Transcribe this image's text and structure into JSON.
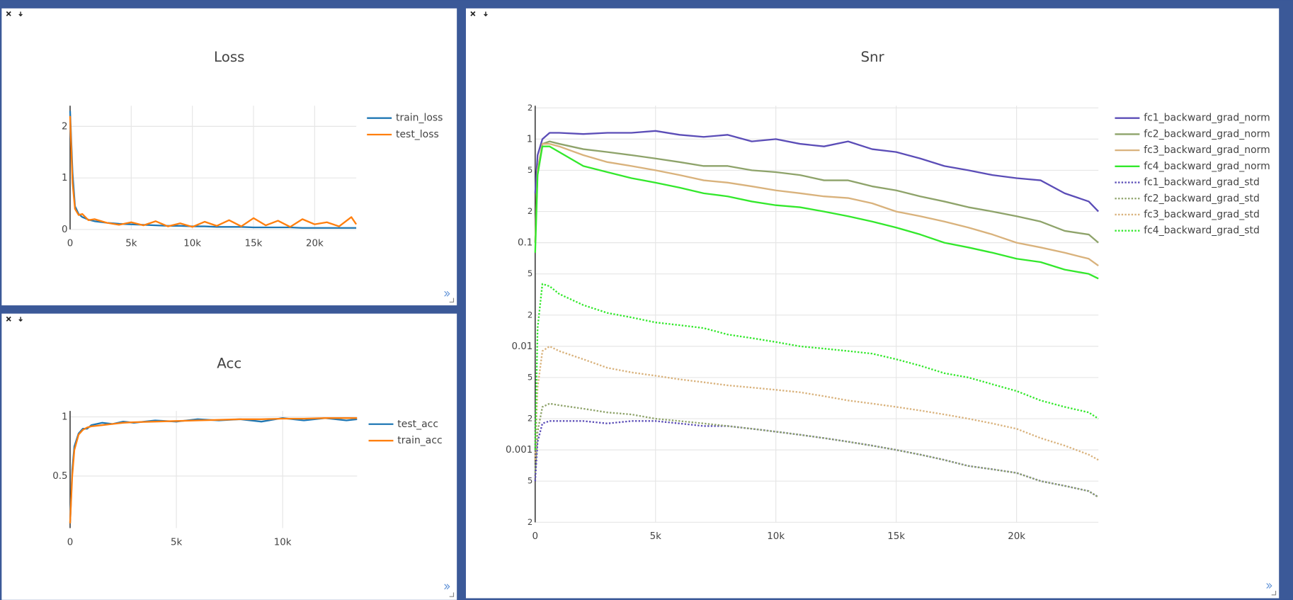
{
  "chart_data": [
    {
      "type": "line",
      "title": "Loss",
      "grid": true,
      "legend": "right",
      "x": [
        0,
        200,
        400,
        700,
        1000,
        1500,
        2000,
        3000,
        4000,
        5000,
        6000,
        7000,
        8000,
        9000,
        10000,
        11000,
        12000,
        13000,
        14000,
        15000,
        16000,
        17000,
        18000,
        19000,
        20000,
        21000,
        22000,
        23000,
        23400
      ],
      "series": [
        {
          "name": "train_loss",
          "color": "#1f77b4",
          "values": [
            2.3,
            1.1,
            0.45,
            0.3,
            0.24,
            0.19,
            0.16,
            0.13,
            0.11,
            0.1,
            0.09,
            0.08,
            0.07,
            0.07,
            0.06,
            0.06,
            0.05,
            0.05,
            0.05,
            0.04,
            0.04,
            0.04,
            0.04,
            0.03,
            0.03,
            0.03,
            0.03,
            0.03,
            0.03
          ]
        },
        {
          "name": "test_loss",
          "color": "#ff7f0e",
          "values": [
            2.2,
            0.9,
            0.4,
            0.28,
            0.3,
            0.18,
            0.2,
            0.13,
            0.09,
            0.14,
            0.08,
            0.16,
            0.06,
            0.12,
            0.05,
            0.15,
            0.07,
            0.18,
            0.06,
            0.22,
            0.08,
            0.17,
            0.05,
            0.2,
            0.1,
            0.14,
            0.06,
            0.24,
            0.1
          ]
        }
      ],
      "xlim": [
        0,
        23400
      ],
      "xticks": [
        0,
        {
          "value": 5000,
          "label": "5k"
        },
        {
          "value": 10000,
          "label": "10k"
        },
        {
          "value": 15000,
          "label": "15k"
        },
        {
          "value": 20000,
          "label": "20k"
        }
      ],
      "ylim": [
        0,
        2.4
      ],
      "yticks": [
        0,
        1,
        2
      ]
    },
    {
      "type": "line",
      "title": "Acc",
      "grid": true,
      "legend": "right",
      "x": [
        0,
        100,
        200,
        400,
        600,
        800,
        1000,
        1500,
        2000,
        2500,
        3000,
        4000,
        5000,
        6000,
        7000,
        8000,
        9000,
        10000,
        11000,
        12000,
        13000,
        13500
      ],
      "series": [
        {
          "name": "test_acc",
          "color": "#1f77b4",
          "values": [
            0.1,
            0.55,
            0.75,
            0.86,
            0.9,
            0.9,
            0.93,
            0.95,
            0.94,
            0.96,
            0.95,
            0.97,
            0.96,
            0.98,
            0.97,
            0.98,
            0.96,
            0.99,
            0.97,
            0.99,
            0.97,
            0.98
          ]
        },
        {
          "name": "train_acc",
          "color": "#ff7f0e",
          "values": [
            0.1,
            0.5,
            0.72,
            0.85,
            0.89,
            0.91,
            0.92,
            0.93,
            0.94,
            0.95,
            0.955,
            0.96,
            0.965,
            0.97,
            0.975,
            0.98,
            0.98,
            0.985,
            0.985,
            0.99,
            0.99,
            0.99
          ]
        }
      ],
      "xlim": [
        0,
        13500
      ],
      "xticks": [
        0,
        {
          "value": 5000,
          "label": "5k"
        },
        {
          "value": 10000,
          "label": "10k"
        }
      ],
      "ylim": [
        0.06,
        1.05
      ],
      "yticks": [
        0.5,
        1
      ]
    },
    {
      "type": "line",
      "title": "Snr",
      "grid": true,
      "legend": "right",
      "log_y": true,
      "x": [
        0,
        100,
        300,
        600,
        1000,
        2000,
        3000,
        4000,
        5000,
        6000,
        7000,
        8000,
        9000,
        10000,
        11000,
        12000,
        13000,
        14000,
        15000,
        16000,
        17000,
        18000,
        19000,
        20000,
        21000,
        22000,
        23000,
        23400
      ],
      "series": [
        {
          "name": "fc1_backward_grad_norm",
          "color": "#5b4db7",
          "dash": "solid",
          "values": [
            0.3,
            0.7,
            1.0,
            1.15,
            1.15,
            1.12,
            1.15,
            1.15,
            1.2,
            1.1,
            1.05,
            1.1,
            0.95,
            1.0,
            0.9,
            0.85,
            0.95,
            0.8,
            0.75,
            0.65,
            0.55,
            0.5,
            0.45,
            0.42,
            0.4,
            0.3,
            0.25,
            0.2
          ]
        },
        {
          "name": "fc2_backward_grad_norm",
          "color": "#8ea36a",
          "dash": "solid",
          "values": [
            0.1,
            0.5,
            0.9,
            0.95,
            0.9,
            0.8,
            0.75,
            0.7,
            0.65,
            0.6,
            0.55,
            0.55,
            0.5,
            0.48,
            0.45,
            0.4,
            0.4,
            0.35,
            0.32,
            0.28,
            0.25,
            0.22,
            0.2,
            0.18,
            0.16,
            0.13,
            0.12,
            0.1
          ]
        },
        {
          "name": "fc3_backward_grad_norm",
          "color": "#d9b27c",
          "dash": "solid",
          "values": [
            0.1,
            0.5,
            0.9,
            0.9,
            0.85,
            0.7,
            0.6,
            0.55,
            0.5,
            0.45,
            0.4,
            0.38,
            0.35,
            0.32,
            0.3,
            0.28,
            0.27,
            0.24,
            0.2,
            0.18,
            0.16,
            0.14,
            0.12,
            0.1,
            0.09,
            0.08,
            0.07,
            0.06
          ]
        },
        {
          "name": "fc4_backward_grad_norm",
          "color": "#33e82c",
          "dash": "solid",
          "values": [
            0.08,
            0.45,
            0.85,
            0.85,
            0.75,
            0.55,
            0.48,
            0.42,
            0.38,
            0.34,
            0.3,
            0.28,
            0.25,
            0.23,
            0.22,
            0.2,
            0.18,
            0.16,
            0.14,
            0.12,
            0.1,
            0.09,
            0.08,
            0.07,
            0.065,
            0.055,
            0.05,
            0.045
          ]
        },
        {
          "name": "fc1_backward_grad_std",
          "color": "#5b4db7",
          "dash": "dot",
          "values": [
            0.0005,
            0.0012,
            0.0018,
            0.0019,
            0.0019,
            0.0019,
            0.0018,
            0.0019,
            0.0019,
            0.0018,
            0.0017,
            0.0017,
            0.0016,
            0.0015,
            0.0014,
            0.0013,
            0.0012,
            0.0011,
            0.001,
            0.0009,
            0.0008,
            0.0007,
            0.00065,
            0.0006,
            0.0005,
            0.00045,
            0.0004,
            0.00035
          ]
        },
        {
          "name": "fc2_backward_grad_std",
          "color": "#8ea36a",
          "dash": "dot",
          "values": [
            0.0006,
            0.0015,
            0.0026,
            0.0028,
            0.0027,
            0.0025,
            0.0023,
            0.0022,
            0.002,
            0.0019,
            0.0018,
            0.0017,
            0.0016,
            0.0015,
            0.0014,
            0.0013,
            0.0012,
            0.0011,
            0.001,
            0.0009,
            0.0008,
            0.0007,
            0.00065,
            0.0006,
            0.0005,
            0.00045,
            0.0004,
            0.00035
          ]
        },
        {
          "name": "fc3_backward_grad_std",
          "color": "#d9b27c",
          "dash": "dot",
          "values": [
            0.0008,
            0.004,
            0.009,
            0.01,
            0.009,
            0.0075,
            0.0062,
            0.0056,
            0.0052,
            0.0048,
            0.0045,
            0.0042,
            0.004,
            0.0038,
            0.0036,
            0.0033,
            0.003,
            0.0028,
            0.0026,
            0.0024,
            0.0022,
            0.002,
            0.0018,
            0.0016,
            0.0013,
            0.0011,
            0.0009,
            0.0008
          ]
        },
        {
          "name": "fc4_backward_grad_std",
          "color": "#33e82c",
          "dash": "dot",
          "values": [
            0.001,
            0.015,
            0.04,
            0.038,
            0.032,
            0.025,
            0.021,
            0.019,
            0.017,
            0.016,
            0.015,
            0.013,
            0.012,
            0.011,
            0.01,
            0.0095,
            0.009,
            0.0085,
            0.0075,
            0.0065,
            0.0055,
            0.005,
            0.0043,
            0.0037,
            0.003,
            0.0026,
            0.0023,
            0.002
          ]
        }
      ],
      "xlim": [
        0,
        23400
      ],
      "xticks": [
        0,
        {
          "value": 5000,
          "label": "5k"
        },
        {
          "value": 10000,
          "label": "10k"
        },
        {
          "value": 15000,
          "label": "15k"
        },
        {
          "value": 20000,
          "label": "20k"
        }
      ],
      "ylim": [
        0.0002,
        2.1
      ],
      "yticks": [
        {
          "value": 0.0002,
          "label": "2"
        },
        {
          "value": 0.0005,
          "label": "5"
        },
        0.001,
        {
          "value": 0.002,
          "label": "2"
        },
        {
          "value": 0.005,
          "label": "5"
        },
        0.01,
        {
          "value": 0.02,
          "label": "2"
        },
        {
          "value": 0.05,
          "label": "5"
        },
        0.1,
        {
          "value": 0.2,
          "label": "2"
        },
        {
          "value": 0.5,
          "label": "5"
        },
        1,
        {
          "value": 2,
          "label": "2"
        }
      ]
    }
  ]
}
